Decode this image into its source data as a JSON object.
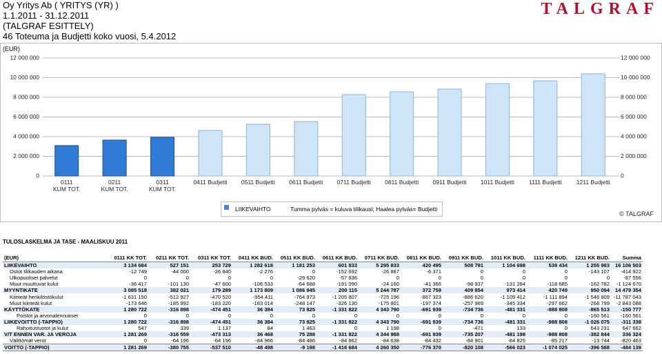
{
  "header": {
    "company": "Oy Yritys Ab ( YRITYS (YR) )",
    "period": "1.1.2011 - 31.12.2011",
    "subtitle": "(TALGRAF ESITTELY)",
    "report": "46 Toteuma ja Budjetti koko vuosi, 5.4.2012",
    "logo": "TALGRAF"
  },
  "chart_data": {
    "type": "bar",
    "y_label": "(EUR)",
    "categories": [
      "0111\nKUM TOT.",
      "0211\nKUM TOT.",
      "0311\nKUM TOT.",
      "0411 Budjetti",
      "0511 Budjetti",
      "0611 Budjetti",
      "0711 Budjetti",
      "0811 Budjetti",
      "0911 Budjetti",
      "1011 Budjetti",
      "1111 Budjetti",
      "1211 Budjetti"
    ],
    "series": [
      {
        "name": "LIIKEVAIHTO",
        "color": "#3f86d6",
        "colors": [
          "#2f7bd6",
          "#2f7bd6",
          "#2f7bd6",
          "#cde5f7",
          "#cde5f7",
          "#cde5f7",
          "#cde5f7",
          "#cde5f7",
          "#cde5f7",
          "#cde5f7",
          "#cde5f7",
          "#cde5f7"
        ],
        "values": [
          3090000,
          3650000,
          3930000,
          4630000,
          5260000,
          5540000,
          8280000,
          8560000,
          8840000,
          9400000,
          9680000,
          10390000
        ]
      }
    ],
    "note": "Tumma pylväs = kuluva tilikausi; Haalea pylväs= Budjetti",
    "copyright": "© TALGRAF",
    "ylim": [
      0,
      12000000
    ],
    "yticks": [
      0,
      {
        "value": 2000000,
        "label": "2 000 000"
      },
      {
        "value": 4000000,
        "label": "4 000 000"
      },
      {
        "value": 6000000,
        "label": "6 000 000"
      },
      {
        "value": 8000000,
        "label": "8 000 000"
      },
      {
        "value": 10000000,
        "label": "10 000 000"
      },
      {
        "value": 12000000,
        "label": "12 000 000"
      }
    ],
    "y2lim": [
      0,
      12000000
    ],
    "y2ticks": [
      0,
      {
        "value": 2000000,
        "label": "2 000 000"
      },
      {
        "value": 4000000,
        "label": "4 000 000"
      },
      {
        "value": 6000000,
        "label": "6 000 000"
      },
      {
        "value": 8000000,
        "label": "8 000 000"
      },
      {
        "value": 10000000,
        "label": "10 000 000"
      },
      {
        "value": 12000000,
        "label": "12 000 000"
      }
    ],
    "grid": true
  },
  "table": {
    "title": "TULOSLASKELMA JA TASE - MAALISKUU 2011",
    "columns": [
      "(EUR)",
      "0111 KK TOT.",
      "0211 KK TOT.",
      "0311 KK TOT.",
      "0411 KK BUD.",
      "0511 KK BUD.",
      "0611 KK BUD.",
      "0711 KK BUD.",
      "0811 KK BUD.",
      "0911 KK BUD.",
      "1011 KK BUD.",
      "1111 KK BUD.",
      "1211 KK BUD.",
      "Summa"
    ],
    "rows": [
      [
        "LIIKEVAIHTO",
        "3 134 684",
        "527 151",
        "253 729",
        "1 282 618",
        "1 181 253",
        "601 833",
        "5 295 833",
        "420 495",
        "508 791",
        "1 104 698",
        "539 434",
        "1 255 983",
        "16 106 503"
      ],
      [
        "Ostot tilikauden aikana",
        "-12 749",
        "-44 000",
        "-26 840",
        "-2 276",
        "0",
        "-152 692",
        "-26 887",
        "-6 371",
        "0",
        "0",
        "0",
        "-143 107",
        "-414 922"
      ],
      [
        "Ulkopuoliset palvelut",
        "0",
        "0",
        "0",
        "0",
        "-29 620",
        "-57 936",
        "0",
        "0",
        "0",
        "0",
        "0",
        "0",
        "-87 556"
      ],
      [
        "Muut muuttuvat kulut",
        "-36 417",
        "-101 130",
        "-47 600",
        "-106 533",
        "-64 688",
        "-191 090",
        "-24 160",
        "-41 366",
        "-98 937",
        "-131 284",
        "-118 685",
        "-162 782",
        "-1 124 670"
      ],
      [
        "MYYNTIKATE",
        "3 085 518",
        "382 021",
        "179 289",
        "1 173 809",
        "1 086 945",
        "200 115",
        "5 244 787",
        "372 759",
        "409 854",
        "973 414",
        "420 749",
        "950 094",
        "14 479 354"
      ],
      [
        "Kiinteät henkilöstökulut",
        "-1 631 150",
        "-512 927",
        "-470 520",
        "-954 411",
        "-764 973",
        "-1 205 807",
        "-725 196",
        "-867 323",
        "-886 620",
        "-1 109 412",
        "-1 111 894",
        "-1 546 809",
        "-11 787 043"
      ],
      [
        "Muut kiinteät kulut",
        "-173 646",
        "-185 992",
        "-183 220",
        "-183 014",
        "-248 147",
        "-326 130",
        "-175 801",
        "-197 374",
        "-257 969",
        "-345 334",
        "-297 662",
        "-268 799",
        "-2 843 088"
      ],
      [
        "KÄYTTÖKATE",
        "1 280 722",
        "-316 898",
        "-474 451",
        "36 384",
        "73 825",
        "-1 331 822",
        "4 343 790",
        "-691 939",
        "-734 736",
        "-481 331",
        "-988 808",
        "-865 513",
        "-150 777"
      ],
      [
        "Poistot ja arvonalennukset",
        "0",
        "0",
        "0",
        "0",
        "0",
        "0",
        "0",
        "0",
        "0",
        "0",
        "0",
        "-160 561",
        "-160 561"
      ],
      [
        "LIIKEVOITTO (-TAPPIO)",
        "1 280 722",
        "-316 898",
        "-474 451",
        "36 384",
        "73 825",
        "-1 331 822",
        "4 343 790",
        "-691 939",
        "-734 736",
        "-481 331",
        "-988 808",
        "-1 026 075",
        "-311 338"
      ],
      [
        "Rahoitustuotot ja kulut",
        "547",
        "339",
        "1 137",
        "84",
        "1 463",
        "0",
        "1 198",
        "0",
        "-471",
        "133",
        "0",
        "643 231",
        "647 662"
      ],
      [
        "V/T ENNEN VAR. JA VEROJA",
        "1 281 269",
        "-316 559",
        "-473 313",
        "36 468",
        "75 288",
        "-1 331 822",
        "4 344 988",
        "-691 939",
        "-735 207",
        "-481 198",
        "-988 808",
        "-382 844",
        "336 324"
      ],
      [
        "Välittömät verot",
        "0",
        "-64 196",
        "-64 196",
        "-84 966",
        "-84 486",
        "-84 862",
        "-84 638",
        "-84 432",
        "-84 901",
        "-84 825",
        "-85 217",
        "-13 744",
        "-820 463"
      ],
      [
        "VOITTO (-TAPPIO)",
        "1 281 269",
        "-380 755",
        "-537 510",
        "-48 498",
        "-9 198",
        "-1 416 684",
        "4 260 350",
        "-776 370",
        "-820 108",
        "-566 023",
        "-1 074 025",
        "-396 588",
        "-484 139"
      ]
    ]
  }
}
